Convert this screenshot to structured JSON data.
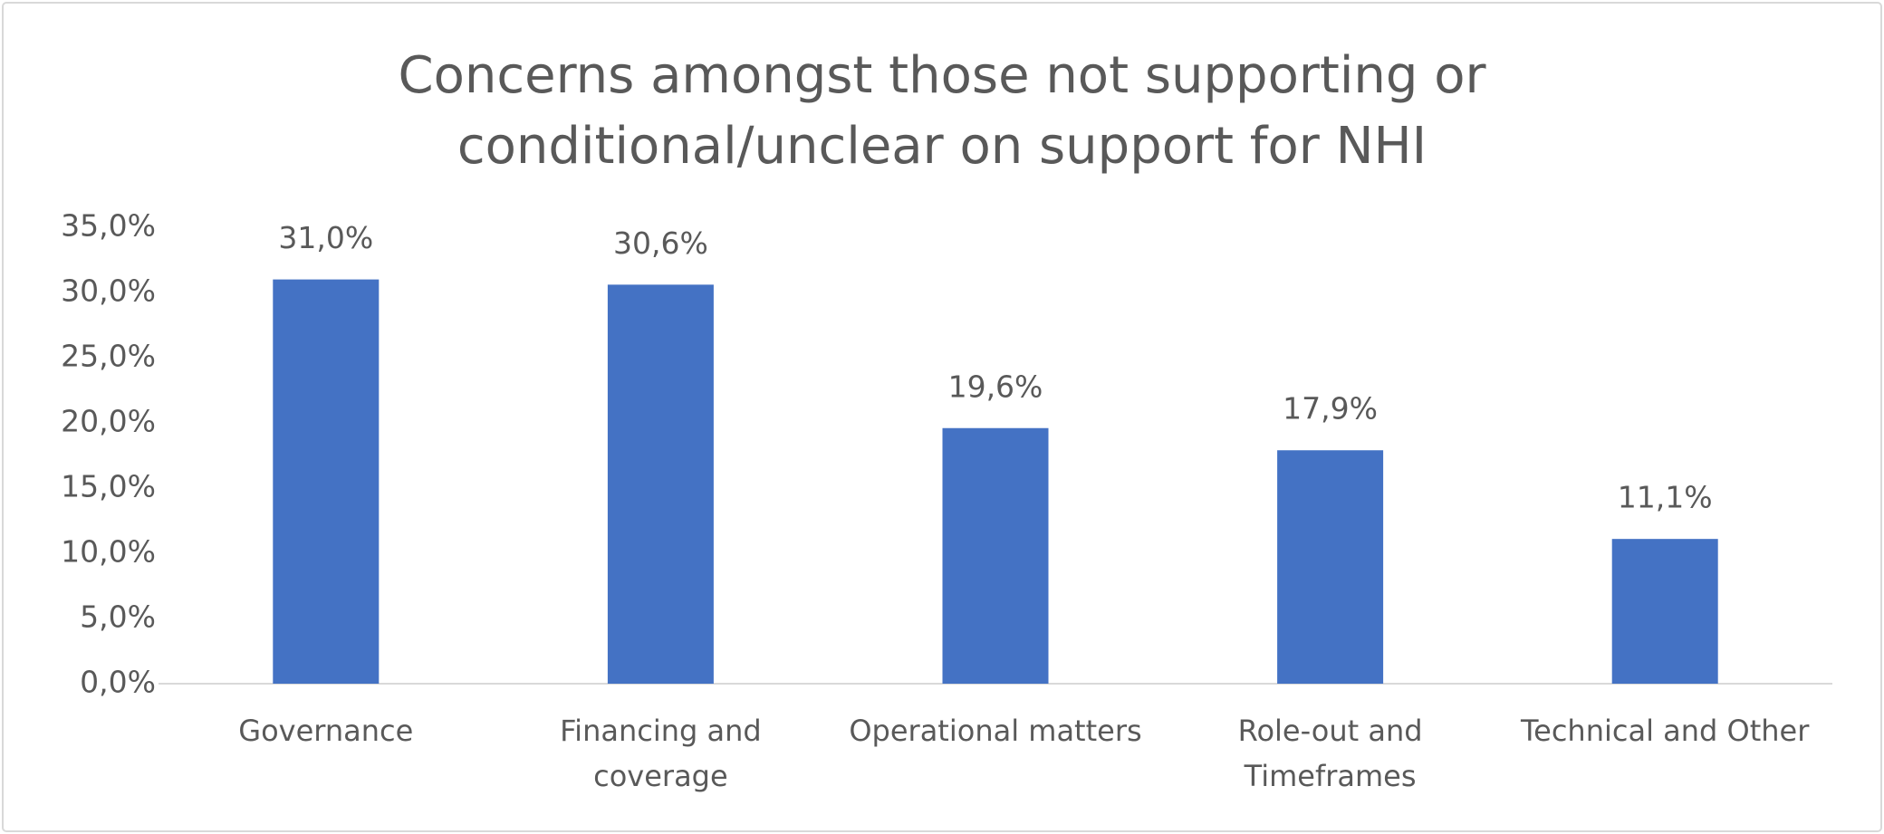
{
  "chart_data": {
    "type": "bar",
    "title": "Concerns amongst those not supporting or conditional/unclear on support for NHI",
    "categories": [
      "Governance",
      "Financing and coverage",
      "Operational matters",
      "Role-out and Timeframes",
      "Technical and Other"
    ],
    "values": [
      31.0,
      30.6,
      19.6,
      17.9,
      11.1
    ],
    "value_labels": [
      "31,0%",
      "30,6%",
      "19,6%",
      "17,9%",
      "11,1%"
    ],
    "color": "#4472c4",
    "ylim": [
      0,
      35
    ],
    "yticks": [
      {
        "value": 0,
        "label": "0,0%"
      },
      {
        "value": 5,
        "label": "5,0%"
      },
      {
        "value": 10,
        "label": "10,0%"
      },
      {
        "value": 15,
        "label": "15,0%"
      },
      {
        "value": 20,
        "label": "20,0%"
      },
      {
        "value": 25,
        "label": "25,0%"
      },
      {
        "value": 30,
        "label": "30,0%"
      },
      {
        "value": 35,
        "label": "35,0%"
      }
    ],
    "grid": false
  }
}
